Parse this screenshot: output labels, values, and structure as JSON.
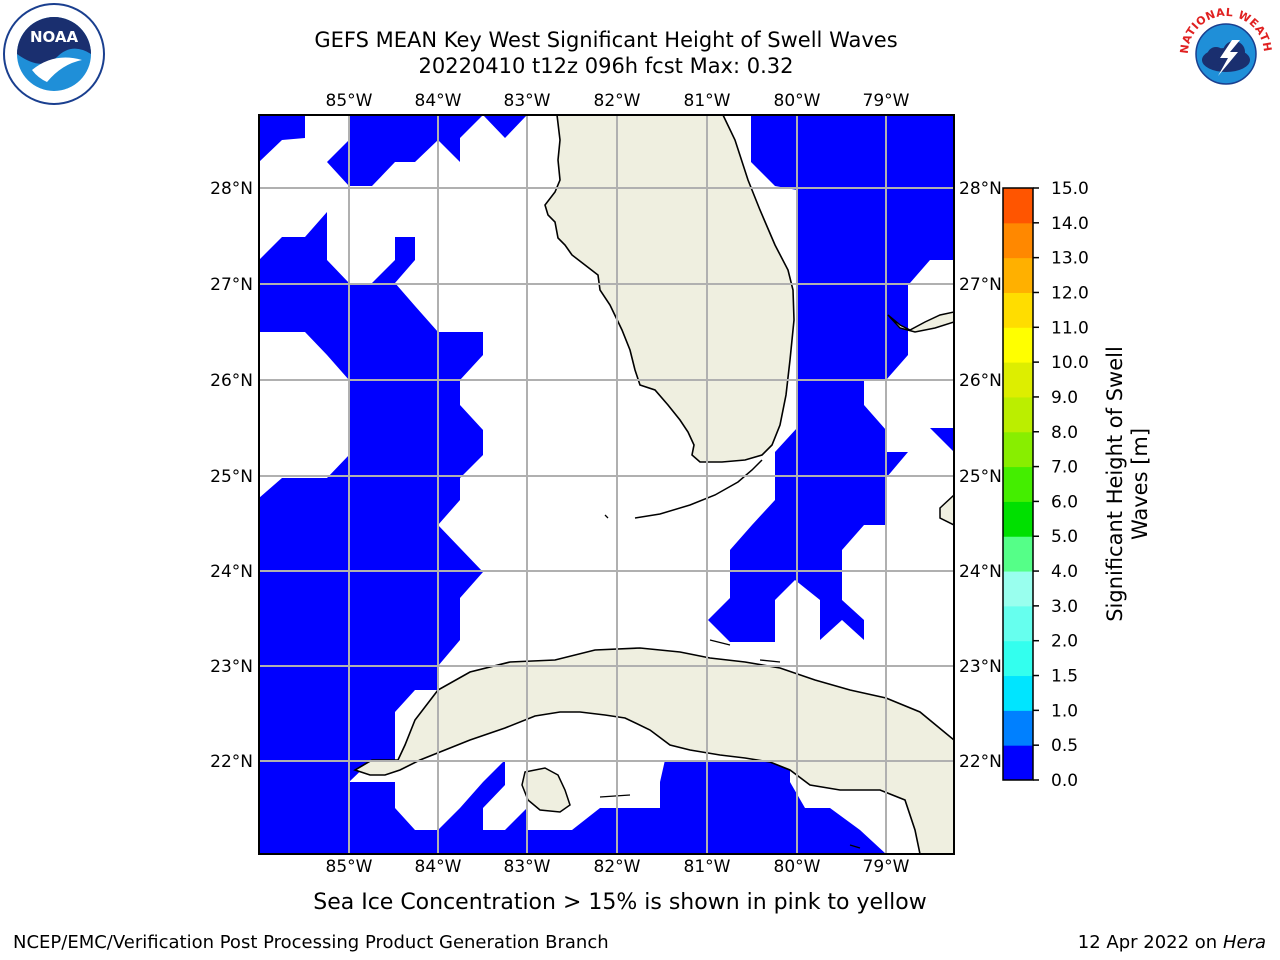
{
  "header": {
    "title_line1": "GEFS MEAN Key West Significant Height of Swell Waves",
    "title_line2": "20220410 t12z 096h fcst   Max: 0.32"
  },
  "logos": {
    "noaa": {
      "text": "NOAA",
      "icon": "noaa-logo-icon"
    },
    "nws": {
      "text": "NATIONAL WEATHER SERVICE",
      "icon": "nws-logo-icon"
    }
  },
  "map": {
    "lon_labels": [
      "85°W",
      "84°W",
      "83°W",
      "82°W",
      "81°W",
      "80°W",
      "79°W"
    ],
    "lat_labels": [
      "28°N",
      "27°N",
      "26°N",
      "25°N",
      "24°N",
      "23°N",
      "22°N"
    ],
    "colors": {
      "ocean_low": "#0000ff",
      "land": "#efefe0",
      "grid": "#b0b0b0",
      "coast": "#000000"
    }
  },
  "colorbar": {
    "label_line1": "Significant Height of Swell",
    "label_line2": "Waves [m]",
    "ticks": [
      "0.0",
      "0.5",
      "1.0",
      "1.5",
      "2.0",
      "3.0",
      "4.0",
      "5.0",
      "6.0",
      "7.0",
      "8.0",
      "9.0",
      "10.0",
      "11.0",
      "12.0",
      "13.0",
      "14.0",
      "15.0"
    ],
    "colors": [
      "#0000ff",
      "#0080ff",
      "#00e5ff",
      "#33ffee",
      "#66ffee",
      "#99ffee",
      "#55ff88",
      "#00e000",
      "#44ee00",
      "#88ee00",
      "#bbee00",
      "#ddee00",
      "#ffff00",
      "#ffdd00",
      "#ffb000",
      "#ff8800",
      "#ff5500",
      "#ff2200",
      "#ff0000"
    ]
  },
  "caption": "Sea Ice Concentration > 15% is shown in pink to yellow",
  "footer": {
    "left": "NCEP/EMC/Verification Post Processing Product Generation Branch",
    "right_date": "12 Apr 2022 on ",
    "right_host": "Hera"
  }
}
